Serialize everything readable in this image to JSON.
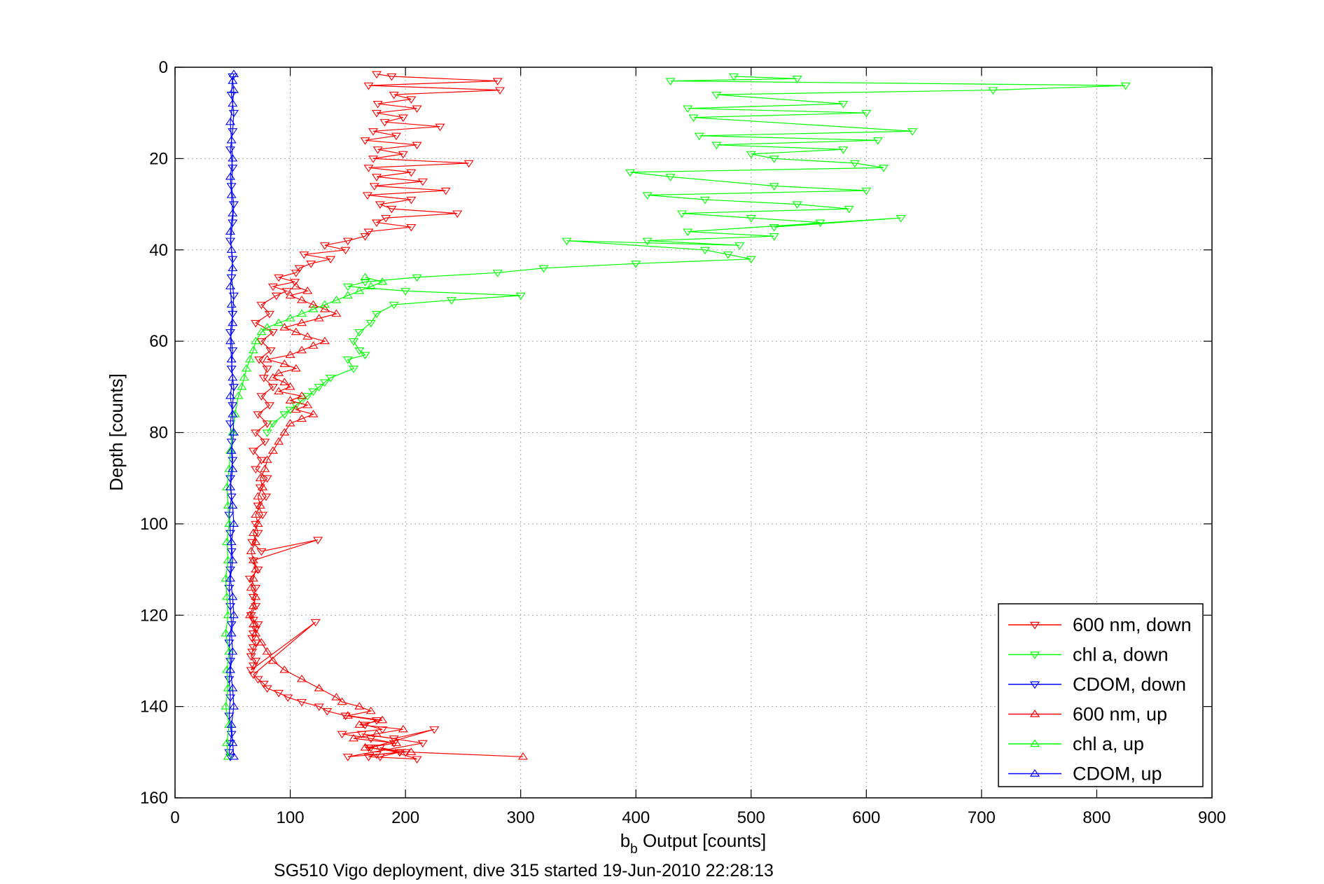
{
  "chart_data": {
    "type": "line",
    "xlabel_main": "b",
    "xlabel_sub": "b",
    "xlabel_rest": " Output [counts]",
    "ylabel": "Depth [counts]",
    "caption": "SG510 Vigo deployment, dive 315 started 19-Jun-2010 22:28:13",
    "xlim": [
      0,
      900
    ],
    "ylim": [
      0,
      160
    ],
    "y_reversed": true,
    "grid": true,
    "legend_position": "bottom-right",
    "xticks": [
      "0",
      "100",
      "200",
      "300",
      "400",
      "500",
      "600",
      "700",
      "800",
      "900"
    ],
    "yticks": [
      "0",
      "20",
      "40",
      "60",
      "80",
      "100",
      "120",
      "140",
      "160"
    ],
    "series": [
      {
        "name": "600 nm, down",
        "color": "#ff0000",
        "marker": "triangle-down",
        "x": [
          175,
          188,
          280,
          168,
          282,
          190,
          205,
          176,
          210,
          175,
          198,
          182,
          230,
          172,
          192,
          165,
          210,
          176,
          198,
          172,
          255,
          168,
          205,
          175,
          215,
          173,
          235,
          167,
          205,
          178,
          188,
          245,
          183,
          175,
          205,
          168,
          165,
          150,
          130,
          148,
          112,
          135,
          118,
          108,
          105,
          90,
          104,
          85,
          97,
          88,
          75,
          82,
          70,
          85,
          75,
          83,
          73,
          80,
          77,
          85,
          75,
          82,
          72,
          80,
          70,
          78,
          68,
          75,
          70,
          80,
          74,
          79,
          72,
          76,
          70,
          72,
          67,
          75,
          124,
          68,
          72,
          65,
          70,
          68,
          70,
          66,
          68,
          72,
          70,
          68,
          67,
          70,
          68,
          67,
          66,
          70,
          68,
          66,
          122,
          68,
          72,
          77,
          80,
          90,
          98,
          110,
          125,
          132,
          148,
          175,
          165,
          180,
          145,
          170,
          190,
          168,
          195,
          175,
          168,
          210,
          178,
          200,
          150,
          215,
          162,
          190,
          225,
          170,
          195,
          178
        ],
        "y": [
          1.5,
          2,
          3,
          4,
          5,
          6,
          7,
          8,
          9,
          10,
          11,
          12,
          13,
          14,
          15,
          16,
          17,
          18,
          19,
          20,
          21,
          22,
          23,
          24,
          25,
          26,
          27,
          28,
          29,
          30,
          31,
          32,
          33,
          34,
          35,
          36,
          37,
          38,
          39,
          40,
          41,
          42,
          43,
          44,
          45,
          46,
          47,
          48,
          49,
          50,
          52,
          54,
          56,
          58,
          60,
          62,
          64,
          66,
          68,
          70,
          72,
          74,
          76,
          78,
          80,
          82,
          84,
          86,
          88,
          90,
          92,
          94,
          96,
          98,
          100,
          102,
          104,
          106,
          103.5,
          108,
          110,
          112,
          114,
          116,
          118,
          120,
          121,
          122,
          123,
          124,
          125,
          126,
          127,
          128,
          129,
          130,
          131,
          132,
          121.5,
          133,
          134,
          135,
          136,
          137,
          138,
          139,
          140,
          141,
          142,
          143,
          144,
          145,
          146,
          147,
          148,
          149,
          150,
          150.5,
          151,
          151.5,
          149,
          150,
          151,
          148,
          146,
          147,
          145,
          149,
          150,
          151
        ]
      },
      {
        "name": "chl a, down",
        "color": "#00ff00",
        "marker": "triangle-down",
        "x": [
          485,
          540,
          430,
          825,
          710,
          470,
          580,
          445,
          600,
          450,
          640,
          455,
          610,
          470,
          580,
          500,
          520,
          590,
          615,
          395,
          430,
          520,
          600,
          410,
          460,
          540,
          585,
          440,
          500,
          560,
          520,
          630,
          445,
          520,
          410,
          490,
          340,
          460,
          480,
          500,
          400,
          320,
          280,
          210,
          165,
          150,
          200,
          300,
          240,
          190,
          175,
          170,
          160,
          155,
          160,
          165,
          150,
          155,
          135,
          130,
          125,
          120,
          115,
          110,
          105,
          100,
          95,
          85,
          80
        ],
        "y": [
          2,
          2.5,
          3,
          4,
          5,
          6,
          8,
          9,
          10,
          11,
          14,
          15,
          16,
          17,
          18,
          19,
          20,
          21,
          22,
          23,
          24,
          26,
          27,
          28,
          29,
          30,
          31,
          32,
          33,
          34,
          35,
          33,
          36,
          37,
          38,
          39,
          38,
          40,
          41,
          42,
          43,
          44,
          45,
          46,
          47,
          48,
          49,
          50,
          51,
          52,
          54,
          56,
          58,
          60,
          62,
          63,
          64,
          66,
          68,
          69,
          70,
          71,
          72,
          73,
          74,
          75,
          76,
          78,
          80
        ]
      },
      {
        "name": "CDOM, down",
        "color": "#0000ff",
        "marker": "triangle-down",
        "x": [
          50,
          49,
          51,
          50,
          48,
          50,
          49,
          51,
          50,
          48,
          50,
          49,
          51,
          50,
          48,
          50,
          49,
          51,
          50,
          48,
          49,
          50,
          48,
          49,
          47,
          48,
          49,
          48,
          47,
          48,
          49,
          47,
          48,
          47,
          48,
          47,
          49,
          48,
          47,
          48
        ],
        "y": [
          2,
          6,
          10,
          14,
          18,
          22,
          26,
          30,
          34,
          38,
          42,
          46,
          50,
          54,
          58,
          62,
          66,
          70,
          74,
          78,
          82,
          86,
          90,
          94,
          98,
          102,
          106,
          110,
          114,
          118,
          122,
          126,
          130,
          134,
          138,
          142,
          146,
          148,
          150,
          151
        ]
      },
      {
        "name": "600 nm, up",
        "color": "#ff0000",
        "marker": "triangle-up",
        "x": [
          302,
          205,
          165,
          192,
          155,
          175,
          198,
          160,
          180,
          150,
          170,
          160,
          145,
          140,
          125,
          110,
          95,
          85,
          80,
          75,
          70,
          68,
          65,
          68,
          70,
          66,
          68,
          70,
          68,
          66,
          70,
          68,
          72,
          70,
          74,
          72,
          76,
          74,
          78,
          80,
          85,
          90,
          95,
          100,
          110,
          120,
          105,
          115,
          100,
          110,
          90,
          100,
          95,
          85,
          90,
          105,
          95,
          80,
          100,
          110,
          120,
          130,
          115,
          105,
          95,
          110,
          125,
          140,
          130,
          120,
          110,
          100,
          115,
          105
        ],
        "y": [
          151,
          150,
          149,
          148,
          147,
          146,
          145,
          144,
          143,
          142,
          141,
          140,
          139,
          138,
          136,
          134,
          132,
          130,
          128,
          126,
          124,
          122,
          120,
          118,
          116,
          114,
          112,
          110,
          108,
          106,
          104,
          102,
          100,
          98,
          96,
          94,
          92,
          90,
          88,
          86,
          84,
          82,
          80,
          78,
          77,
          76,
          75,
          74,
          73,
          72,
          71,
          70,
          69,
          68,
          67,
          66,
          65,
          64,
          63,
          62,
          61,
          60,
          59,
          58,
          57,
          56,
          55,
          54,
          53,
          52,
          51,
          50,
          49,
          48
        ]
      },
      {
        "name": "chl a, up",
        "color": "#00ff00",
        "marker": "triangle-up",
        "x": [
          46,
          45,
          47,
          44,
          46,
          45,
          47,
          44,
          46,
          45,
          44,
          46,
          45,
          47,
          46,
          45,
          47,
          48,
          50,
          52,
          55,
          58,
          60,
          62,
          65,
          68,
          70,
          75,
          80,
          90,
          100,
          110,
          120,
          130,
          140,
          150,
          160,
          170,
          180,
          165
        ],
        "y": [
          151,
          148,
          144,
          140,
          136,
          132,
          128,
          124,
          120,
          116,
          112,
          108,
          104,
          100,
          96,
          92,
          88,
          84,
          80,
          76,
          72,
          70,
          68,
          66,
          64,
          62,
          60,
          58,
          57,
          56,
          55,
          54,
          53,
          52,
          51,
          50,
          49,
          48,
          47,
          46
        ]
      },
      {
        "name": "CDOM, up",
        "color": "#0000ff",
        "marker": "triangle-up",
        "x": [
          51,
          50,
          49,
          51,
          50,
          48,
          50,
          49,
          51,
          50,
          48,
          50,
          49,
          51,
          50,
          48,
          50,
          49,
          51,
          50,
          48,
          50,
          49,
          48,
          50,
          49,
          48,
          50,
          49,
          48,
          50,
          49,
          48,
          50,
          49,
          48,
          50,
          51,
          50,
          51
        ],
        "y": [
          151,
          148,
          144,
          140,
          136,
          132,
          128,
          124,
          120,
          116,
          112,
          108,
          104,
          100,
          96,
          92,
          88,
          84,
          80,
          76,
          72,
          68,
          64,
          60,
          56,
          52,
          48,
          44,
          40,
          36,
          32,
          28,
          24,
          20,
          16,
          12,
          8,
          5,
          3,
          1.5
        ]
      }
    ]
  }
}
